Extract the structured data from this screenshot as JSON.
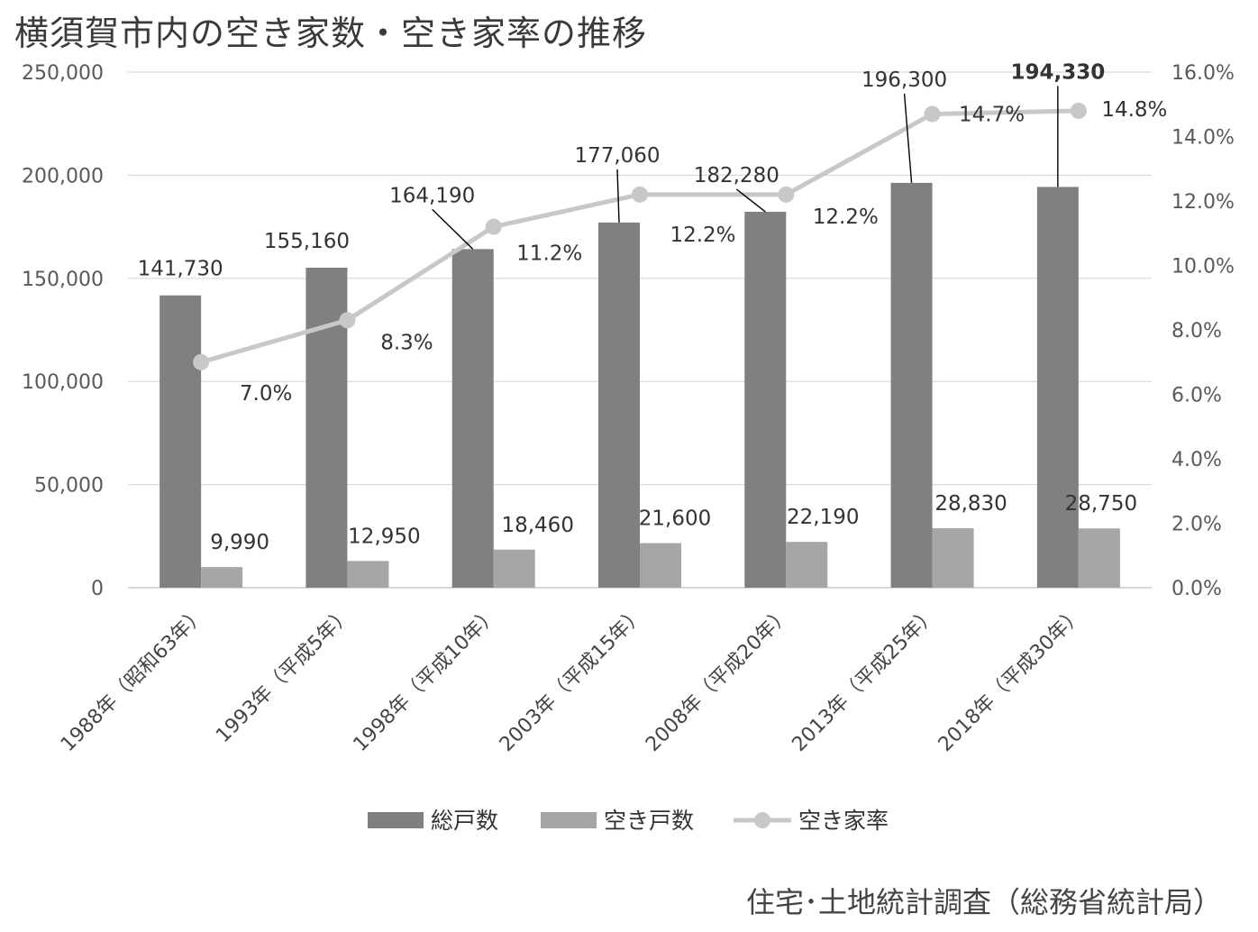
{
  "chart_data": {
    "type": "bar",
    "title": "横須賀市内の空き家数・空き家率の推移",
    "categories": [
      "1988年（昭和63年）",
      "1993年（平成5年）",
      "1998年（平成10年）",
      "2003年（平成15年）",
      "2008年（平成20年）",
      "2013年（平成25年）",
      "2018年（平成30年）"
    ],
    "series": [
      {
        "name": "総戸数",
        "type": "bar",
        "axis": "left",
        "color": "#808080",
        "values": [
          141730,
          155160,
          164190,
          177060,
          182280,
          196300,
          194330
        ],
        "labels": [
          "141,730",
          "155,160",
          "164,190",
          "177,060",
          "182,280",
          "196,300",
          "194,330"
        ]
      },
      {
        "name": "空き戸数",
        "type": "bar",
        "axis": "left",
        "color": "#a6a6a6",
        "values": [
          9990,
          12950,
          18460,
          21600,
          22190,
          28830,
          28750
        ],
        "labels": [
          "9,990",
          "12,950",
          "18,460",
          "21,600",
          "22,190",
          "28,830",
          "28,750"
        ]
      },
      {
        "name": "空き家率",
        "type": "line",
        "axis": "right",
        "color": "#c8c8c8",
        "values": [
          7.0,
          8.3,
          11.2,
          12.2,
          12.2,
          14.7,
          14.8
        ],
        "labels": [
          "7.0%",
          "8.3%",
          "11.2%",
          "12.2%",
          "12.2%",
          "14.7%",
          "14.8%"
        ]
      }
    ],
    "left_axis": {
      "range": [
        0,
        250000
      ],
      "ticks": [
        "0",
        "50,000",
        "100,000",
        "150,000",
        "200,000",
        "250,000"
      ]
    },
    "right_axis": {
      "range": [
        0,
        16
      ],
      "ticks": [
        "0.0%",
        "2.0%",
        "4.0%",
        "6.0%",
        "8.0%",
        "10.0%",
        "12.0%",
        "14.0%",
        "16.0%"
      ]
    },
    "grid": true,
    "legend_position": "bottom"
  },
  "source_note": "住宅･土地統計調査（総務省統計局）"
}
